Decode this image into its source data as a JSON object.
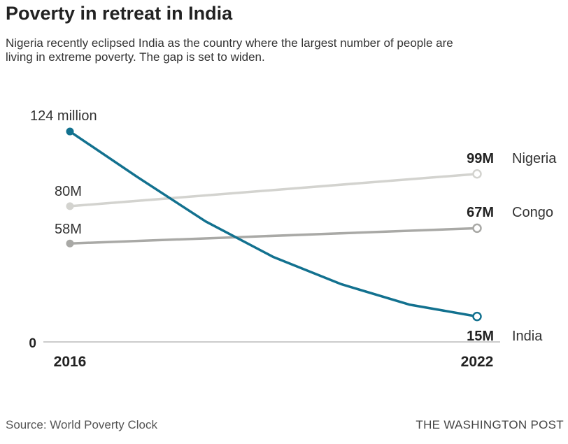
{
  "chart_data": {
    "type": "line",
    "title": "Poverty in retreat in India",
    "subtitle": "Nigeria recently eclipsed India as the country where the largest number of people are living in extreme poverty. The gap is set to widen.",
    "xlabel": "",
    "ylabel": "",
    "x_ticks": [
      "2016",
      "2022"
    ],
    "y_tick": "0",
    "xlim": [
      2016,
      2022
    ],
    "ylim": [
      0,
      124
    ],
    "series": [
      {
        "name": "Nigeria",
        "color": "#d3d3cf",
        "x": [
          2016,
          2022
        ],
        "values": [
          80,
          99
        ],
        "start_label": "80M",
        "end_label": "99M"
      },
      {
        "name": "Congo",
        "color": "#a9a9a6",
        "x": [
          2016,
          2022
        ],
        "values": [
          58,
          67
        ],
        "start_label": "58M",
        "end_label": "67M"
      },
      {
        "name": "India",
        "color": "#12718f",
        "x": [
          2016,
          2017,
          2018,
          2019,
          2020,
          2021,
          2022
        ],
        "values": [
          124,
          97,
          71,
          50,
          34,
          22,
          15
        ],
        "start_label": "124 million",
        "end_label": "15M"
      }
    ]
  },
  "source": "Source: World Poverty Clock",
  "brand": "THE WASHINGTON POST"
}
